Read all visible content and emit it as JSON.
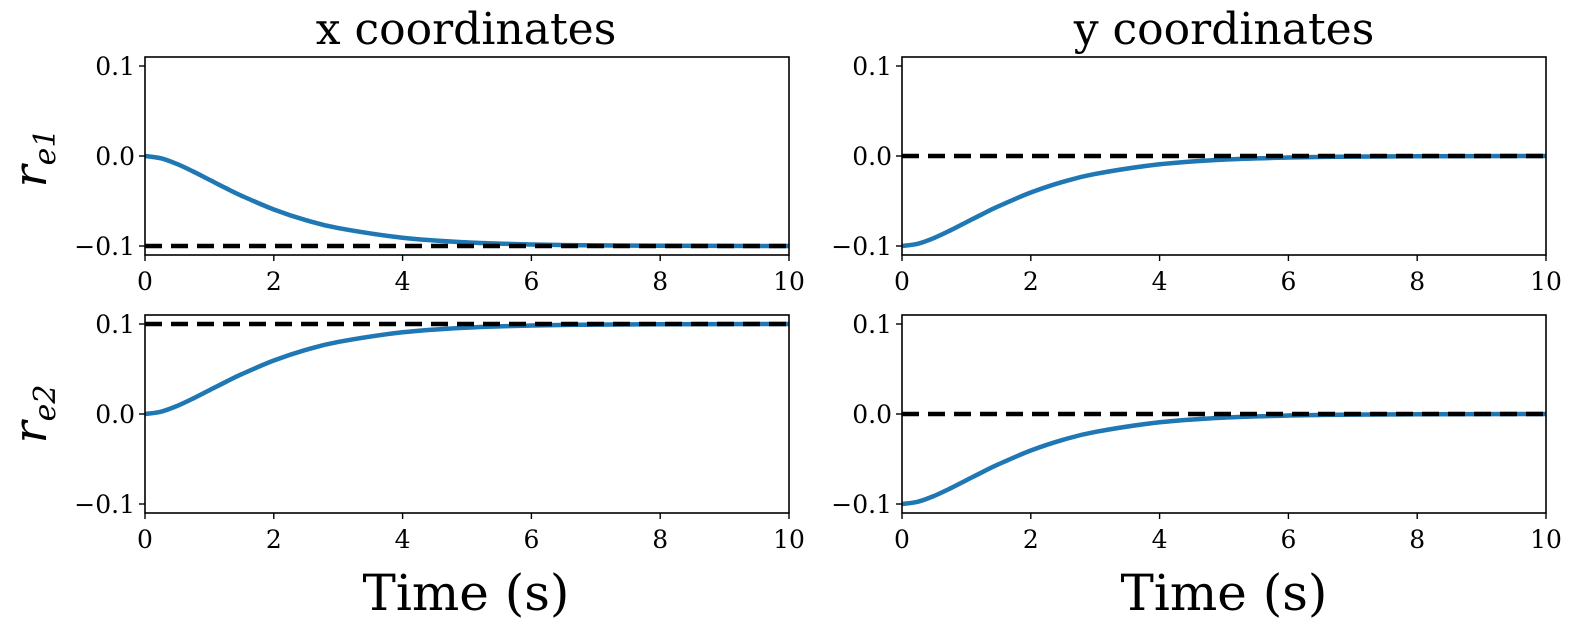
{
  "figure": {
    "column_titles": [
      "x coordinates",
      "y coordinates"
    ],
    "row_labels": [
      {
        "base": "r",
        "sub": "e1"
      },
      {
        "base": "r",
        "sub": "e2"
      }
    ],
    "xlabel": "Time (s)"
  },
  "colors": {
    "trajectory": "#1f77b4",
    "reference": "#000000"
  },
  "chart_data": [
    {
      "type": "line",
      "row": 0,
      "col": 0,
      "title": "x coordinates",
      "ylabel": "r_e1",
      "xlabel": "",
      "xlim": [
        0,
        10
      ],
      "ylim": [
        -0.11,
        0.11
      ],
      "xticks": [
        0,
        2,
        4,
        6,
        8,
        10
      ],
      "yticks": [
        -0.1,
        0.0,
        0.1
      ],
      "ytick_labels": [
        "−0.1",
        "0.0",
        "0.1"
      ],
      "grid": false,
      "series": [
        {
          "style": "solid",
          "x": [
            0,
            0.25,
            0.5,
            0.75,
            1,
            1.25,
            1.5,
            2,
            2.5,
            3,
            4,
            5,
            6,
            7,
            8,
            10
          ],
          "y": [
            0.0,
            -0.0026,
            -0.009,
            -0.0173,
            -0.0264,
            -0.0355,
            -0.0442,
            -0.0594,
            -0.0713,
            -0.0801,
            -0.0908,
            -0.096,
            -0.0983,
            -0.0993,
            -0.0997,
            -0.1
          ]
        },
        {
          "style": "dashed",
          "x": [
            0,
            10
          ],
          "y": [
            -0.1,
            -0.1
          ]
        }
      ]
    },
    {
      "type": "line",
      "row": 0,
      "col": 1,
      "title": "y coordinates",
      "ylabel": "",
      "xlabel": "",
      "xlim": [
        0,
        10
      ],
      "ylim": [
        -0.11,
        0.11
      ],
      "xticks": [
        0,
        2,
        4,
        6,
        8,
        10
      ],
      "yticks": [
        -0.1,
        0.0,
        0.1
      ],
      "ytick_labels": [
        "−0.1",
        "0.0",
        "0.1"
      ],
      "grid": false,
      "series": [
        {
          "style": "solid",
          "x": [
            0,
            0.25,
            0.5,
            0.75,
            1,
            1.25,
            1.5,
            2,
            2.5,
            3,
            4,
            5,
            6,
            7,
            8,
            10
          ],
          "y": [
            -0.1,
            -0.0974,
            -0.091,
            -0.0827,
            -0.0736,
            -0.0645,
            -0.0558,
            -0.0406,
            -0.0287,
            -0.0199,
            -0.0092,
            -0.004,
            -0.0017,
            -0.0007,
            -0.0003,
            0.0
          ]
        },
        {
          "style": "dashed",
          "x": [
            0,
            10
          ],
          "y": [
            0.0,
            0.0
          ]
        }
      ]
    },
    {
      "type": "line",
      "row": 1,
      "col": 0,
      "title": "",
      "ylabel": "r_e2",
      "xlabel": "Time (s)",
      "xlim": [
        0,
        10
      ],
      "ylim": [
        -0.11,
        0.11
      ],
      "xticks": [
        0,
        2,
        4,
        6,
        8,
        10
      ],
      "yticks": [
        -0.1,
        0.0,
        0.1
      ],
      "ytick_labels": [
        "−0.1",
        "0.0",
        "0.1"
      ],
      "grid": false,
      "series": [
        {
          "style": "solid",
          "x": [
            0,
            0.25,
            0.5,
            0.75,
            1,
            1.25,
            1.5,
            2,
            2.5,
            3,
            4,
            5,
            6,
            7,
            8,
            10
          ],
          "y": [
            0.0,
            0.0026,
            0.009,
            0.0173,
            0.0264,
            0.0355,
            0.0442,
            0.0594,
            0.0713,
            0.0801,
            0.0908,
            0.096,
            0.0983,
            0.0993,
            0.0997,
            0.1
          ]
        },
        {
          "style": "dashed",
          "x": [
            0,
            10
          ],
          "y": [
            0.1,
            0.1
          ]
        }
      ]
    },
    {
      "type": "line",
      "row": 1,
      "col": 1,
      "title": "",
      "ylabel": "",
      "xlabel": "Time (s)",
      "xlim": [
        0,
        10
      ],
      "ylim": [
        -0.11,
        0.11
      ],
      "xticks": [
        0,
        2,
        4,
        6,
        8,
        10
      ],
      "yticks": [
        -0.1,
        0.0,
        0.1
      ],
      "ytick_labels": [
        "−0.1",
        "0.0",
        "0.1"
      ],
      "grid": false,
      "series": [
        {
          "style": "solid",
          "x": [
            0,
            0.25,
            0.5,
            0.75,
            1,
            1.25,
            1.5,
            2,
            2.5,
            3,
            4,
            5,
            6,
            7,
            8,
            10
          ],
          "y": [
            -0.1,
            -0.0974,
            -0.091,
            -0.0827,
            -0.0736,
            -0.0645,
            -0.0558,
            -0.0406,
            -0.0287,
            -0.0199,
            -0.0092,
            -0.004,
            -0.0017,
            -0.0007,
            -0.0003,
            0.0
          ]
        },
        {
          "style": "dashed",
          "x": [
            0,
            10
          ],
          "y": [
            0.0,
            0.0
          ]
        }
      ]
    }
  ]
}
